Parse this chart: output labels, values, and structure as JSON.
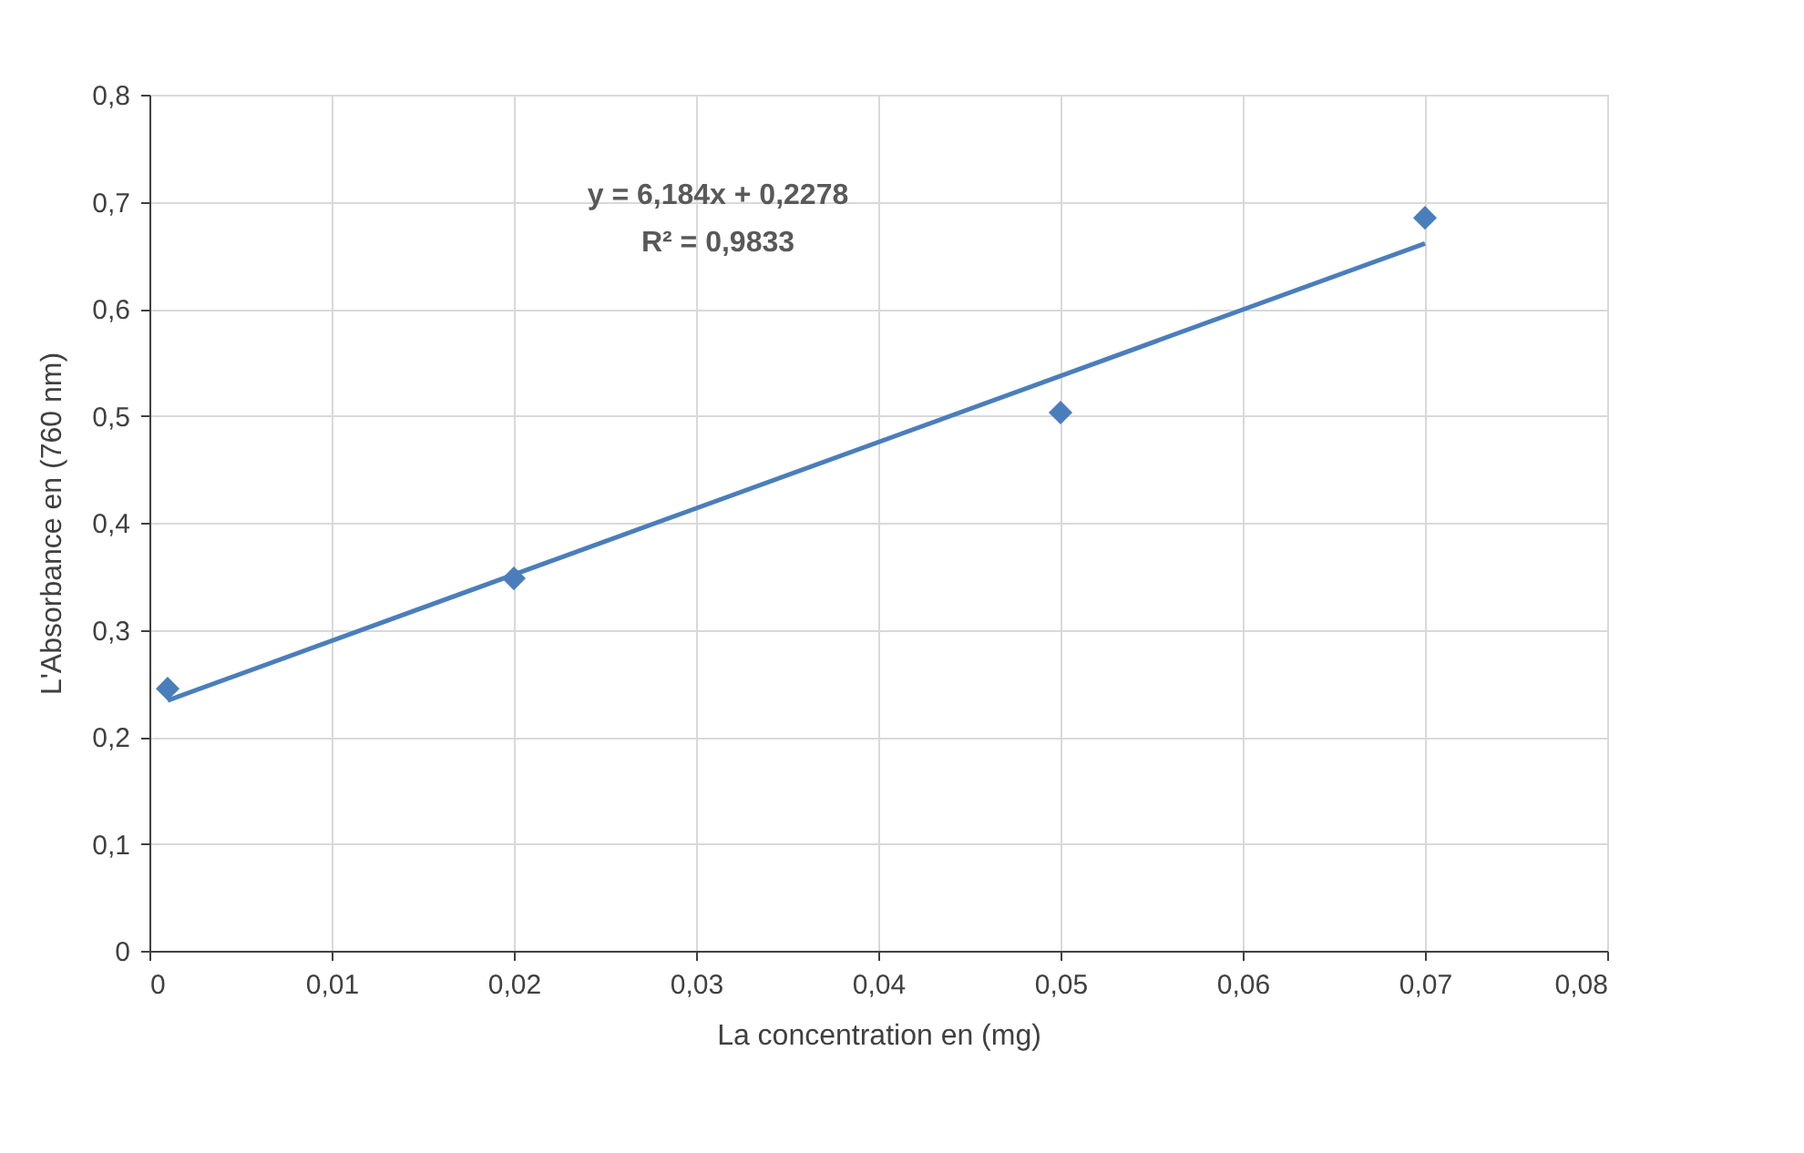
{
  "chart_data": {
    "type": "scatter",
    "xlabel": "La concentration en (mg)",
    "ylabel": "L'Absorbance  en (760 nm)",
    "x": [
      0.001,
      0.02,
      0.05,
      0.07
    ],
    "series": [
      {
        "color": "#4a7ebb",
        "marker": "diamond",
        "values": [
          0.245,
          0.348,
          0.503,
          0.685
        ]
      },
      {
        "type": "line",
        "color": "#4a7ebb",
        "marker": "none",
        "line_style": "solid",
        "x": [
          0.001,
          0.07
        ],
        "values": [
          0.234,
          0.661
        ]
      }
    ],
    "annotations": [
      "y = 6,184x + 0,2278",
      "R² = 0,9833"
    ],
    "xlim": [
      0,
      0.08
    ],
    "xticks": [
      0,
      {
        "value": 0.01,
        "label": "0,01"
      },
      {
        "value": 0.02,
        "label": "0,02"
      },
      {
        "value": 0.03,
        "label": "0,03"
      },
      {
        "value": 0.04,
        "label": "0,04"
      },
      {
        "value": 0.05,
        "label": "0,05"
      },
      {
        "value": 0.06,
        "label": "0,06"
      },
      {
        "value": 0.07,
        "label": "0,07"
      },
      {
        "value": 0.08,
        "label": "0,08"
      }
    ],
    "ylim": [
      0,
      0.8
    ],
    "yticks": [
      0,
      {
        "value": 0.1,
        "label": "0,1"
      },
      {
        "value": 0.2,
        "label": "0,2"
      },
      {
        "value": 0.3,
        "label": "0,3"
      },
      {
        "value": 0.4,
        "label": "0,4"
      },
      {
        "value": 0.5,
        "label": "0,5"
      },
      {
        "value": 0.6,
        "label": "0,6"
      },
      {
        "value": 0.7,
        "label": "0,7"
      },
      {
        "value": 0.8,
        "label": "0,8"
      }
    ],
    "grid": true
  }
}
